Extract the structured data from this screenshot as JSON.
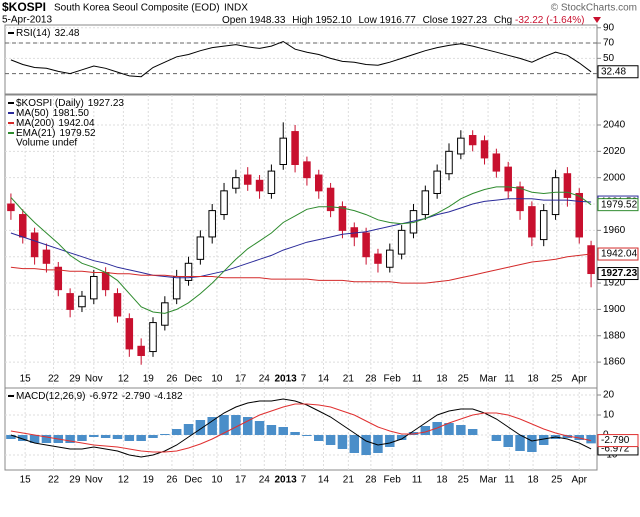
{
  "header": {
    "symbol": "$KOSPI",
    "name": "South Korea Seoul Composite (EOD)",
    "exchange": "INDX",
    "date": "5-Apr-2013",
    "open_label": "Open",
    "open": "1948.33",
    "high_label": "High",
    "high": "1952.10",
    "low_label": "Low",
    "low": "1916.77",
    "close_label": "Close",
    "close": "1927.23",
    "chg_label": "Chg",
    "chg": "-32.22 (-1.64%)",
    "copyright": "© StockCharts.com"
  },
  "chart_data": [
    {
      "type": "line",
      "xlim": [
        -0.5,
        49.5
      ],
      "ylim": [
        6,
        91
      ],
      "yticks": [
        90,
        70,
        50
      ],
      "guides": [
        70,
        30
      ],
      "x": [
        0,
        1,
        2,
        3,
        4,
        5,
        6,
        7,
        8,
        9,
        10,
        11,
        12,
        13,
        14,
        15,
        16,
        17,
        18,
        19,
        20,
        21,
        22,
        23,
        24,
        25,
        26,
        27,
        28,
        29,
        30,
        31,
        32,
        33,
        34,
        35,
        36,
        37,
        38,
        39,
        40,
        41,
        42,
        43,
        44,
        45,
        46,
        47,
        48,
        49
      ],
      "series": [
        {
          "name": "RSI(14)",
          "color": "#000000",
          "values": [
            48,
            42,
            38,
            37,
            33,
            30,
            35,
            40,
            37,
            32,
            27,
            26,
            38,
            45,
            52,
            55,
            60,
            64,
            66,
            68,
            65,
            63,
            66,
            72,
            62,
            58,
            55,
            50,
            46,
            45,
            42,
            41,
            45,
            50,
            55,
            60,
            64,
            67,
            69,
            66,
            62,
            58,
            54,
            50,
            45,
            52,
            58,
            54,
            44,
            32.48
          ]
        }
      ]
    },
    {
      "type": "candlestick",
      "title": "$KOSPI (Daily)",
      "up_color": "#000000",
      "down_color": "#c8102e",
      "xlim": [
        -0.5,
        49.5
      ],
      "ylim": [
        1854,
        2062
      ],
      "yticks": [
        1860,
        1880,
        1900,
        1920,
        1940,
        1960,
        1980,
        2000,
        2020,
        2040
      ],
      "xticks": [
        {
          "value": 1.2,
          "label": "15"
        },
        {
          "value": 3.6,
          "label": "22"
        },
        {
          "value": 5.4,
          "label": "29"
        },
        {
          "value": 7,
          "label": "Nov"
        },
        {
          "value": 9.5,
          "label": "12"
        },
        {
          "value": 11.6,
          "label": "19"
        },
        {
          "value": 13.6,
          "label": "26"
        },
        {
          "value": 15.4,
          "label": "Dec"
        },
        {
          "value": 17.4,
          "label": "10"
        },
        {
          "value": 19.4,
          "label": "17"
        },
        {
          "value": 21.4,
          "label": "24"
        },
        {
          "value": 23.2,
          "label": "2013"
        },
        {
          "value": 24.7,
          "label": "7"
        },
        {
          "value": 26.4,
          "label": "14"
        },
        {
          "value": 28.5,
          "label": "21"
        },
        {
          "value": 30.4,
          "label": "28"
        },
        {
          "value": 32.2,
          "label": "Feb"
        },
        {
          "value": 34.3,
          "label": "11"
        },
        {
          "value": 36.4,
          "label": "18"
        },
        {
          "value": 38.2,
          "label": "25"
        },
        {
          "value": 40.3,
          "label": "Mar"
        },
        {
          "value": 42.1,
          "label": "11"
        },
        {
          "value": 44.1,
          "label": "18"
        },
        {
          "value": 46.1,
          "label": "25"
        },
        {
          "value": 48,
          "label": "Apr"
        }
      ],
      "x": [
        0,
        1,
        2,
        3,
        4,
        5,
        6,
        7,
        8,
        9,
        10,
        11,
        12,
        13,
        14,
        15,
        16,
        17,
        18,
        19,
        20,
        21,
        22,
        23,
        24,
        25,
        26,
        27,
        28,
        29,
        30,
        31,
        32,
        33,
        34,
        35,
        36,
        37,
        38,
        39,
        40,
        41,
        42,
        43,
        44,
        45,
        46,
        47,
        48,
        49
      ],
      "open": [
        1980,
        1972,
        1958,
        1945,
        1932,
        1912,
        1902,
        1908,
        1928,
        1912,
        1893,
        1872,
        1868,
        1888,
        1908,
        1922,
        1938,
        1955,
        1972,
        1992,
        2002,
        1998,
        1988,
        2010,
        2035,
        2012,
        2002,
        1992,
        1978,
        1962,
        1958,
        1942,
        1932,
        1942,
        1958,
        1972,
        1988,
        2003,
        2018,
        2032,
        2028,
        2018,
        2008,
        1993,
        1978,
        1953,
        1972,
        2003,
        1988,
        1948.33
      ],
      "high": [
        1988,
        1976,
        1962,
        1950,
        1936,
        1916,
        1914,
        1930,
        1932,
        1916,
        1897,
        1878,
        1894,
        1910,
        1930,
        1940,
        1960,
        1980,
        1996,
        2006,
        2008,
        2002,
        2010,
        2042,
        2040,
        2016,
        2006,
        1996,
        1982,
        1966,
        1962,
        1946,
        1950,
        1964,
        1980,
        1994,
        2010,
        2026,
        2036,
        2036,
        2032,
        2022,
        2012,
        1997,
        1982,
        1980,
        2006,
        2008,
        1992,
        1952.1
      ],
      "low": [
        1968,
        1950,
        1934,
        1928,
        1910,
        1894,
        1898,
        1904,
        1910,
        1890,
        1864,
        1858,
        1864,
        1884,
        1904,
        1918,
        1934,
        1950,
        1968,
        1988,
        1990,
        1984,
        1984,
        2006,
        2004,
        1994,
        1984,
        1970,
        1954,
        1948,
        1934,
        1928,
        1928,
        1938,
        1954,
        1968,
        1984,
        1998,
        2014,
        2020,
        2010,
        2000,
        1984,
        1968,
        1948,
        1948,
        1968,
        1978,
        1950,
        1916.77
      ],
      "close": [
        1975,
        1955,
        1940,
        1935,
        1915,
        1900,
        1910,
        1925,
        1915,
        1895,
        1870,
        1865,
        1890,
        1905,
        1925,
        1935,
        1955,
        1975,
        1990,
        2000,
        1995,
        1990,
        2005,
        2030,
        2010,
        2000,
        1990,
        1975,
        1960,
        1955,
        1940,
        1935,
        1945,
        1960,
        1975,
        1990,
        2005,
        2020,
        2030,
        2025,
        2015,
        2005,
        1990,
        1975,
        1955,
        1975,
        2000,
        1985,
        1955,
        1927.23
      ],
      "series": [
        {
          "name": "MA(50)",
          "color": "#2b2b9a",
          "last_label": "1981.50",
          "values": [
            1958,
            1955,
            1952,
            1949,
            1946,
            1943,
            1940,
            1937,
            1935,
            1932,
            1930,
            1928,
            1926,
            1925,
            1924,
            1924,
            1925,
            1927,
            1929,
            1932,
            1935,
            1938,
            1941,
            1945,
            1948,
            1951,
            1953,
            1955,
            1957,
            1958,
            1959,
            1961,
            1963,
            1965,
            1967,
            1969,
            1972,
            1974,
            1977,
            1980,
            1982,
            1983,
            1984,
            1984,
            1984,
            1983,
            1983,
            1983,
            1982,
            1981.5
          ]
        },
        {
          "name": "MA(200)",
          "color": "#d42a2a",
          "last_label": "1942.04",
          "values": [
            1932,
            1931,
            1931,
            1930,
            1930,
            1929,
            1929,
            1928,
            1928,
            1927,
            1927,
            1926,
            1926,
            1926,
            1925,
            1925,
            1925,
            1925,
            1924,
            1924,
            1924,
            1924,
            1923,
            1923,
            1923,
            1923,
            1922,
            1922,
            1922,
            1921,
            1921,
            1921,
            1921,
            1920,
            1920,
            1920,
            1921,
            1922,
            1924,
            1926,
            1928,
            1930,
            1932,
            1934,
            1936,
            1937,
            1938,
            1940,
            1941,
            1942.04
          ]
        },
        {
          "name": "EMA(21)",
          "color": "#2e8b2e",
          "last_label": "1979.52",
          "values": [
            1985,
            1975,
            1966,
            1958,
            1950,
            1941,
            1935,
            1932,
            1928,
            1922,
            1912,
            1902,
            1898,
            1897,
            1900,
            1905,
            1912,
            1920,
            1929,
            1938,
            1946,
            1952,
            1958,
            1966,
            1971,
            1976,
            1978,
            1978,
            1977,
            1975,
            1972,
            1968,
            1966,
            1965,
            1966,
            1969,
            1973,
            1978,
            1984,
            1988,
            1991,
            1993,
            1993,
            1992,
            1989,
            1988,
            1989,
            1989,
            1986,
            1979.52
          ]
        }
      ],
      "notes": [
        "Volume undef"
      ]
    },
    {
      "type": "macd",
      "title": "MACD(12,26,9)",
      "xlim": [
        -0.5,
        49.5
      ],
      "ylim": [
        -13.5,
        22.5
      ],
      "yticks": [
        20,
        10,
        0,
        -10
      ],
      "xticks": [
        {
          "value": 1.2,
          "label": "15"
        },
        {
          "value": 3.6,
          "label": "22"
        },
        {
          "value": 5.4,
          "label": "29"
        },
        {
          "value": 7,
          "label": "Nov"
        },
        {
          "value": 9.5,
          "label": "12"
        },
        {
          "value": 11.6,
          "label": "19"
        },
        {
          "value": 13.6,
          "label": "26"
        },
        {
          "value": 15.4,
          "label": "Dec"
        },
        {
          "value": 17.4,
          "label": "10"
        },
        {
          "value": 19.4,
          "label": "17"
        },
        {
          "value": 21.4,
          "label": "24"
        },
        {
          "value": 23.2,
          "label": "2013"
        },
        {
          "value": 24.7,
          "label": "7"
        },
        {
          "value": 26.4,
          "label": "14"
        },
        {
          "value": 28.5,
          "label": "21"
        },
        {
          "value": 30.4,
          "label": "28"
        },
        {
          "value": 32.2,
          "label": "Feb"
        },
        {
          "value": 34.3,
          "label": "11"
        },
        {
          "value": 36.4,
          "label": "18"
        },
        {
          "value": 38.2,
          "label": "25"
        },
        {
          "value": 40.3,
          "label": "Mar"
        },
        {
          "value": 42.1,
          "label": "11"
        },
        {
          "value": 44.1,
          "label": "18"
        },
        {
          "value": 46.1,
          "label": "25"
        },
        {
          "value": 48,
          "label": "Apr"
        }
      ],
      "x": [
        0,
        1,
        2,
        3,
        4,
        5,
        6,
        7,
        8,
        9,
        10,
        11,
        12,
        13,
        14,
        15,
        16,
        17,
        18,
        19,
        20,
        21,
        22,
        23,
        24,
        25,
        26,
        27,
        28,
        29,
        30,
        31,
        32,
        33,
        34,
        35,
        36,
        37,
        38,
        39,
        40,
        41,
        42,
        43,
        44,
        45,
        46,
        47,
        48,
        49
      ],
      "series": [
        {
          "kind": "histogram",
          "color": "#4a8ec9",
          "values": [
            -2,
            -3,
            -4,
            -4,
            -4,
            -4,
            -3,
            -1,
            -1.5,
            -2,
            -3,
            -3,
            -1.5,
            0.5,
            3,
            5.5,
            7.5,
            9,
            10,
            10,
            9,
            7,
            5,
            4,
            1.5,
            -0.5,
            -3,
            -5,
            -7,
            -9,
            -10,
            -9,
            -6,
            -2.5,
            1.5,
            4.5,
            6.5,
            6,
            5,
            3,
            0,
            -3,
            -6,
            -8,
            -8.5,
            -5,
            -2,
            -1.5,
            -2.5,
            -4.182
          ]
        },
        {
          "kind": "line",
          "color": "#000000",
          "values": [
            0,
            -2,
            -4,
            -5,
            -6,
            -7,
            -7,
            -6,
            -7,
            -8,
            -10,
            -11,
            -10,
            -8,
            -5,
            -1,
            3,
            7,
            11,
            14,
            16,
            17,
            17,
            18,
            17,
            15,
            12,
            9,
            5,
            1,
            -3,
            -5,
            -4,
            -2,
            2,
            6,
            10,
            12,
            13,
            13,
            11,
            8,
            4,
            0,
            -3,
            -2,
            -1,
            -2,
            -4,
            -6.972
          ]
        },
        {
          "kind": "line",
          "color": "#e03030",
          "last_label": "-2.790",
          "values": [
            2,
            1,
            0,
            -1,
            -2,
            -3,
            -4,
            -5,
            -5.5,
            -6,
            -7,
            -8,
            -8.5,
            -8.5,
            -8,
            -6.5,
            -4.5,
            -2,
            1,
            4,
            7,
            10,
            12,
            14,
            15.5,
            15.5,
            15,
            14,
            12,
            10,
            7,
            4,
            2,
            0.5,
            0.5,
            1.5,
            3.5,
            6,
            8,
            10,
            11,
            11,
            10,
            8,
            5.5,
            3,
            1,
            -0.5,
            -1.5,
            -2.79
          ]
        }
      ]
    }
  ]
}
